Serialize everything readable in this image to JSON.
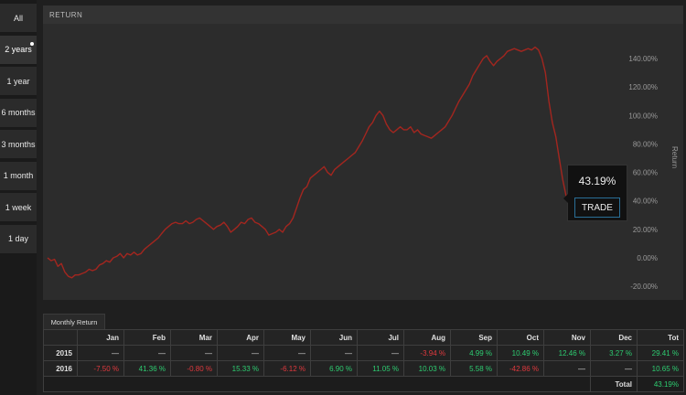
{
  "sidebar": {
    "buttons": [
      {
        "label": "All"
      },
      {
        "label": "2 years"
      },
      {
        "label": "1 year"
      },
      {
        "label": "6 months"
      },
      {
        "label": "3 months"
      },
      {
        "label": "1 month"
      },
      {
        "label": "1 week"
      },
      {
        "label": "1 day"
      }
    ],
    "active_index": 1
  },
  "chart": {
    "header": "RETURN",
    "y_axis_label": "Return",
    "line_color": "#a3261f",
    "tooltip_value": "43.19%",
    "trade_label": "TRADE"
  },
  "chart_data": {
    "type": "line",
    "title": "RETURN",
    "xlabel": "",
    "ylabel": "Return",
    "ylim": [
      -20,
      150
    ],
    "y_ticks": [
      "-20.00%",
      "0.00%",
      "20.00%",
      "40.00%",
      "60.00%",
      "80.00%",
      "100.00%",
      "120.00%",
      "140.00%"
    ],
    "grid": false,
    "series": [
      {
        "values": [
          0,
          -2,
          -1,
          -6,
          -4,
          -10,
          -13,
          -14,
          -12,
          -12,
          -11,
          -10,
          -8,
          -9,
          -8,
          -5,
          -4,
          -2,
          -3,
          0,
          1,
          3,
          0,
          3,
          2,
          4,
          2,
          3,
          6,
          8,
          10,
          12,
          14,
          17,
          20,
          22,
          24,
          25,
          24,
          24,
          26,
          24,
          25,
          27,
          28,
          26,
          24,
          22,
          20,
          22,
          23,
          25,
          22,
          18,
          20,
          22,
          25,
          24,
          27,
          28,
          25,
          24,
          22,
          20,
          16,
          17,
          18,
          20,
          18,
          22,
          24,
          28,
          35,
          42,
          48,
          50,
          56,
          58,
          60,
          62,
          64,
          60,
          58,
          62,
          64,
          66,
          68,
          70,
          72,
          74,
          78,
          82,
          87,
          92,
          95,
          100,
          103,
          100,
          94,
          90,
          88,
          90,
          92,
          90,
          90,
          92,
          88,
          90,
          87,
          86,
          85,
          84,
          86,
          88,
          90,
          92,
          96,
          100,
          105,
          110,
          114,
          118,
          122,
          128,
          132,
          136,
          140,
          142,
          138,
          135,
          138,
          140,
          142,
          145,
          146,
          147,
          146,
          145,
          146,
          147,
          146,
          148,
          146,
          140,
          130,
          110,
          95,
          85,
          70,
          55,
          43.19
        ]
      }
    ]
  },
  "monthly": {
    "tab_label": "Monthly Return",
    "headers": [
      "",
      "Jan",
      "Feb",
      "Mar",
      "Apr",
      "May",
      "Jun",
      "Jul",
      "Aug",
      "Sep",
      "Oct",
      "Nov",
      "Dec",
      "Tot"
    ],
    "rows": [
      {
        "year": "2015",
        "cells": [
          "—",
          "—",
          "—",
          "—",
          "—",
          "—",
          "—",
          "-3.94 %",
          "4.99 %",
          "10.49 %",
          "12.46 %",
          "3.27 %",
          "29.41 %"
        ]
      },
      {
        "year": "2016",
        "cells": [
          "-7.50 %",
          "41.36 %",
          "-0.80 %",
          "15.33 %",
          "-6.12 %",
          "6.90 %",
          "11.05 %",
          "10.03 %",
          "5.58 %",
          "-42.86 %",
          "—",
          "—",
          "10.65 %"
        ]
      }
    ],
    "total_label": "Total",
    "total_value": "43.19%"
  }
}
